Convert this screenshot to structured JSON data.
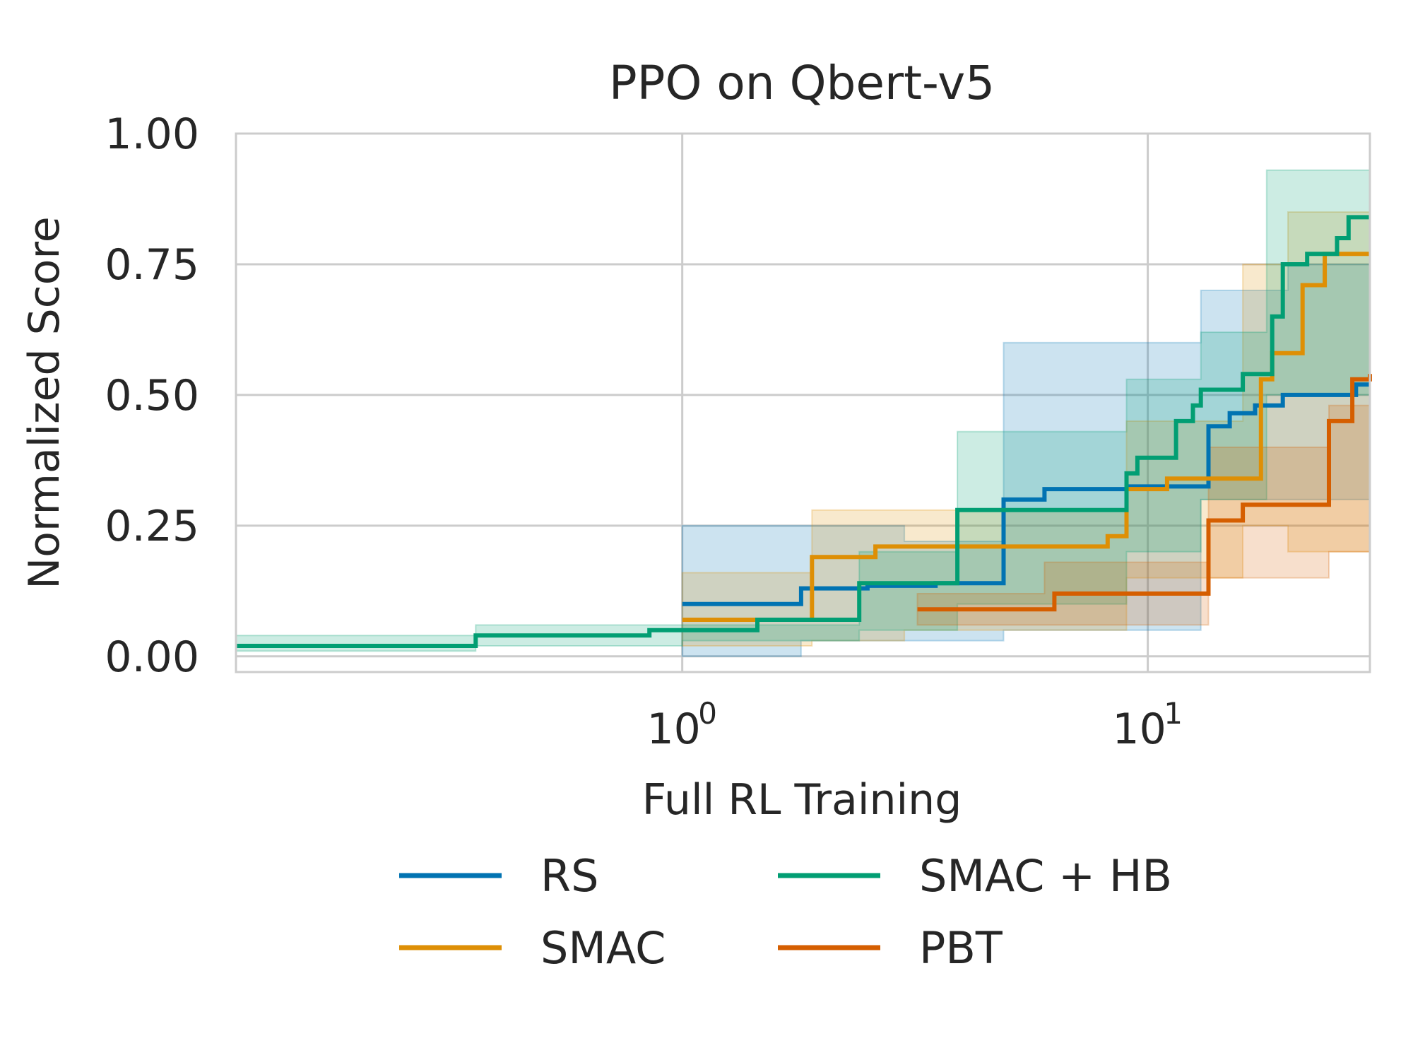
{
  "chart_data": {
    "type": "line",
    "title": "PPO on Qbert-v5",
    "xlabel": "Full RL Training",
    "ylabel": "Normalized Score",
    "xscale": "log",
    "xlim": [
      0.11,
      30
    ],
    "ylim": [
      -0.03,
      1.0
    ],
    "yticks": [
      0.0,
      0.25,
      0.5,
      0.75,
      1.0
    ],
    "ytick_labels": [
      "0.00",
      "0.25",
      "0.50",
      "0.75",
      "1.00"
    ],
    "xticks": [
      1,
      10
    ],
    "xtick_labels": [
      {
        "base": "10",
        "exp": "0"
      },
      {
        "base": "10",
        "exp": "1"
      }
    ],
    "grid": true,
    "legend_position": "bottom",
    "series": [
      {
        "name": "RS",
        "color": "#0173b2",
        "points": [
          [
            1.0,
            0.1
          ],
          [
            1.8,
            0.13
          ],
          [
            2.5,
            0.135
          ],
          [
            3.5,
            0.14
          ],
          [
            4.9,
            0.3
          ],
          [
            6.0,
            0.32
          ],
          [
            9.0,
            0.325
          ],
          [
            13.5,
            0.44
          ],
          [
            15.0,
            0.465
          ],
          [
            17.0,
            0.48
          ],
          [
            19.5,
            0.5
          ],
          [
            28.0,
            0.52
          ],
          [
            30.0,
            0.52
          ]
        ],
        "band": [
          [
            1.0,
            0.0,
            0.25
          ],
          [
            1.8,
            0.03,
            0.25
          ],
          [
            3.0,
            0.03,
            0.22
          ],
          [
            4.9,
            0.05,
            0.6
          ],
          [
            13.0,
            0.3,
            0.7
          ],
          [
            20.0,
            0.3,
            0.75
          ],
          [
            30.0,
            0.28,
            0.75
          ]
        ]
      },
      {
        "name": "SMAC",
        "color": "#de8f05",
        "points": [
          [
            1.0,
            0.07
          ],
          [
            1.9,
            0.19
          ],
          [
            2.6,
            0.21
          ],
          [
            8.2,
            0.23
          ],
          [
            9.0,
            0.32
          ],
          [
            11.0,
            0.34
          ],
          [
            17.5,
            0.53
          ],
          [
            18.5,
            0.58
          ],
          [
            21.5,
            0.71
          ],
          [
            24.0,
            0.77
          ],
          [
            30.0,
            0.77
          ]
        ],
        "band": [
          [
            1.0,
            0.02,
            0.16
          ],
          [
            1.9,
            0.03,
            0.28
          ],
          [
            3.0,
            0.05,
            0.28
          ],
          [
            9.0,
            0.15,
            0.45
          ],
          [
            16.0,
            0.25,
            0.75
          ],
          [
            20.0,
            0.2,
            0.85
          ],
          [
            30.0,
            0.3,
            0.93
          ]
        ]
      },
      {
        "name": "SMAC + HB",
        "color": "#029e73",
        "points": [
          [
            0.11,
            0.02
          ],
          [
            0.36,
            0.04
          ],
          [
            0.85,
            0.05
          ],
          [
            1.45,
            0.07
          ],
          [
            2.4,
            0.14
          ],
          [
            3.9,
            0.28
          ],
          [
            9.0,
            0.35
          ],
          [
            9.5,
            0.38
          ],
          [
            11.5,
            0.45
          ],
          [
            12.5,
            0.48
          ],
          [
            13.0,
            0.51
          ],
          [
            16.0,
            0.54
          ],
          [
            18.5,
            0.65
          ],
          [
            19.5,
            0.75
          ],
          [
            22.0,
            0.77
          ],
          [
            25.5,
            0.8
          ],
          [
            27.0,
            0.84
          ],
          [
            30.0,
            0.84
          ]
        ],
        "band": [
          [
            0.11,
            0.01,
            0.04
          ],
          [
            0.36,
            0.02,
            0.06
          ],
          [
            1.0,
            0.03,
            0.06
          ],
          [
            2.4,
            0.05,
            0.2
          ],
          [
            3.9,
            0.1,
            0.43
          ],
          [
            9.0,
            0.2,
            0.53
          ],
          [
            13.0,
            0.3,
            0.62
          ],
          [
            18.0,
            0.5,
            0.93
          ],
          [
            30.0,
            0.55,
            0.93
          ]
        ]
      },
      {
        "name": "PBT",
        "color": "#d55e00",
        "points": [
          [
            3.2,
            0.09
          ],
          [
            6.3,
            0.12
          ],
          [
            13.5,
            0.26
          ],
          [
            16.0,
            0.29
          ],
          [
            24.5,
            0.45
          ],
          [
            27.5,
            0.53
          ],
          [
            30.0,
            0.54
          ]
        ],
        "band": [
          [
            3.2,
            0.06,
            0.12
          ],
          [
            6.0,
            0.06,
            0.18
          ],
          [
            13.5,
            0.15,
            0.4
          ],
          [
            24.5,
            0.2,
            0.48
          ],
          [
            30.0,
            0.25,
            0.6
          ]
        ]
      }
    ]
  }
}
